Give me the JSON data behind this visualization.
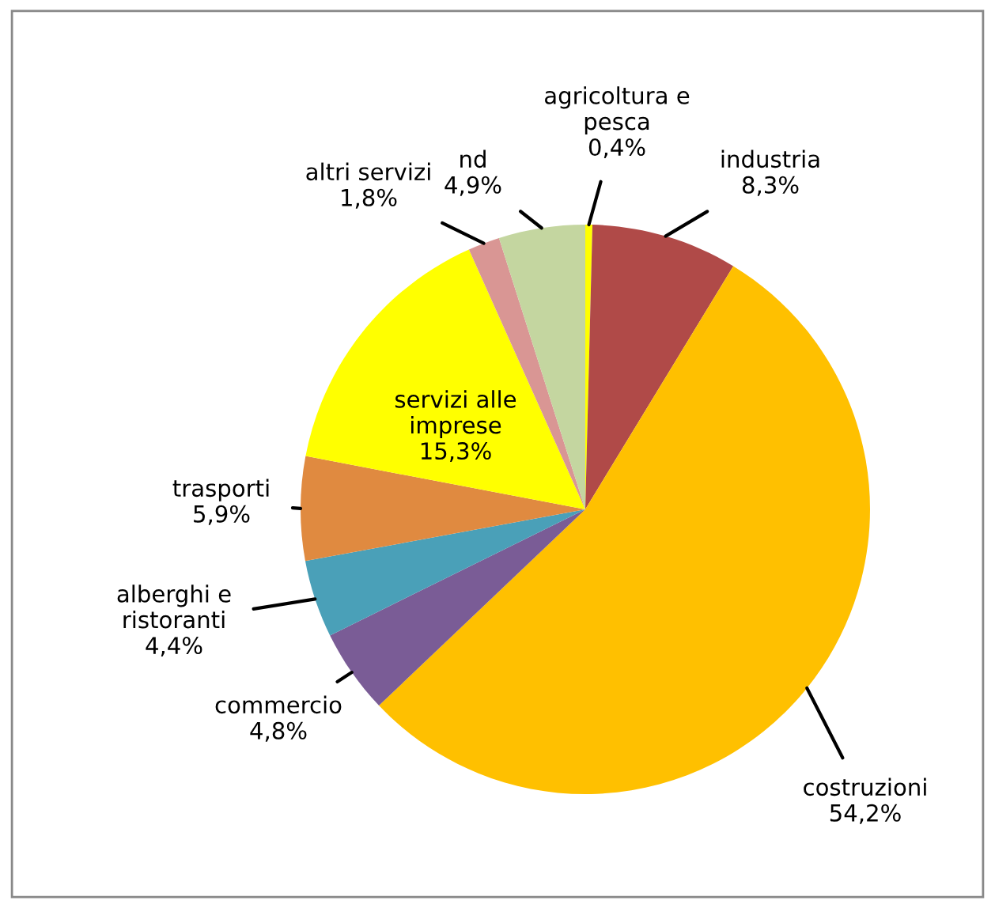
{
  "chart_data": {
    "type": "pie",
    "categories": [
      "agricoltura e\npesca",
      "industria",
      "costruzioni",
      "commercio",
      "alberghi e\nristoranti",
      "trasporti",
      "servizi alle\nimprese",
      "altri servizi",
      "nd"
    ],
    "values": [
      0.4,
      8.3,
      54.2,
      4.8,
      4.4,
      5.9,
      15.3,
      1.8,
      4.9
    ],
    "value_labels": [
      "0,4%",
      "8,3%",
      "54,2%",
      "4,8%",
      "4,4%",
      "5,9%",
      "15,3%",
      "1,8%",
      "4,9%"
    ],
    "colors": [
      "#ffff00",
      "#b04a48",
      "#ffc000",
      "#7a5c96",
      "#4aa0b8",
      "#e08a40",
      "#ffff00",
      "#d99694",
      "#c4d6a0"
    ]
  }
}
